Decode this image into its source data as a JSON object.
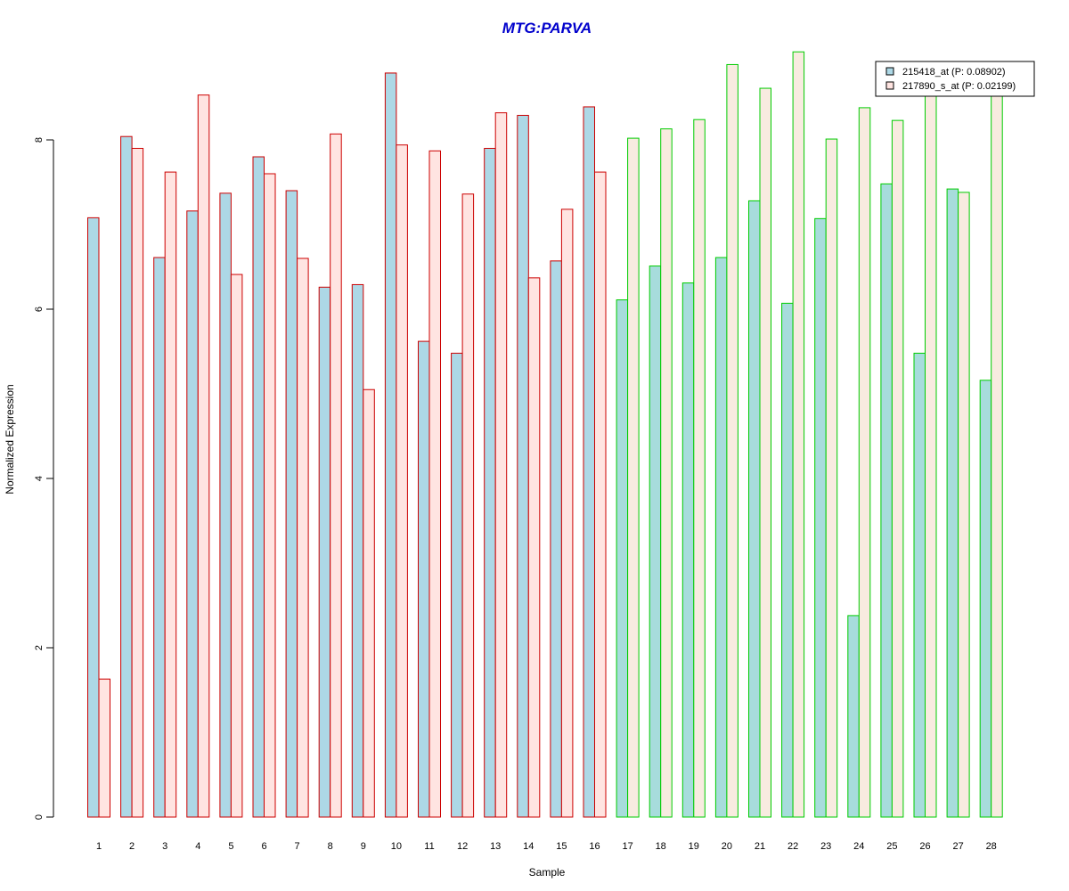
{
  "chart_data": {
    "type": "bar",
    "title": "MTG:PARVA",
    "xlabel": "Sample",
    "ylabel": "Normalized Expression",
    "ylim": [
      0,
      9
    ],
    "yticks": [
      0,
      2,
      4,
      6,
      8
    ],
    "categories": [
      "1",
      "2",
      "3",
      "4",
      "5",
      "6",
      "7",
      "8",
      "9",
      "10",
      "11",
      "12",
      "13",
      "14",
      "15",
      "16",
      "17",
      "18",
      "19",
      "20",
      "21",
      "22",
      "23",
      "24",
      "25",
      "26",
      "27",
      "28"
    ],
    "series": [
      {
        "name": "215418_at (P: 0.08902)",
        "values": [
          7.08,
          8.04,
          6.61,
          7.16,
          7.37,
          7.8,
          7.4,
          6.26,
          6.29,
          8.79,
          5.62,
          5.48,
          7.9,
          8.29,
          6.57,
          8.39,
          6.11,
          6.51,
          6.31,
          6.61,
          7.28,
          6.07,
          7.07,
          2.38,
          7.48,
          5.48,
          7.42,
          5.16
        ]
      },
      {
        "name": "217890_s_at (P: 0.02199)",
        "values": [
          1.63,
          7.9,
          7.62,
          8.53,
          6.41,
          7.6,
          6.6,
          8.07,
          5.05,
          7.94,
          7.87,
          7.36,
          8.32,
          6.37,
          7.18,
          7.62,
          8.02,
          8.13,
          8.24,
          8.89,
          8.61,
          9.04,
          8.01,
          8.38,
          8.23,
          8.59,
          7.38,
          8.6
        ]
      }
    ],
    "group_border_colors": [
      "#cc0000",
      "#00cc00"
    ],
    "group_boundary_after_sample": 16,
    "series_fill_colors": [
      "#add8e6",
      "#ffe4e1"
    ],
    "series_fill_colors_group2": [
      "#a7dcdc",
      "#f8ebe0"
    ],
    "legend_position": "top-right",
    "grid": false
  }
}
